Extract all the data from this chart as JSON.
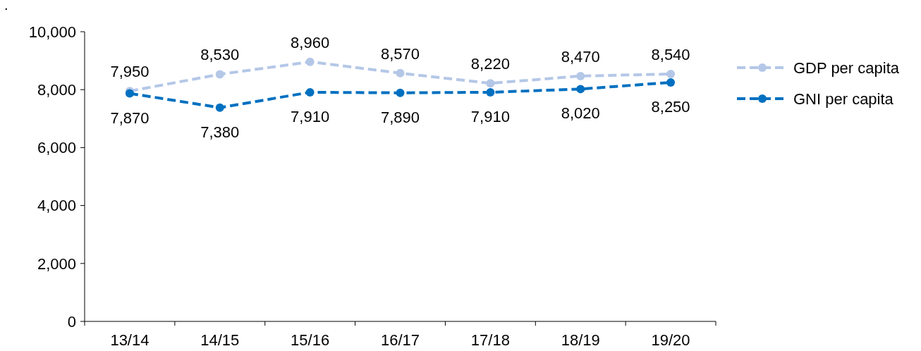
{
  "chart_data": {
    "type": "line",
    "annotations": [
      "."
    ],
    "categories": [
      "13/14",
      "14/15",
      "15/16",
      "16/17",
      "17/18",
      "18/19",
      "19/20"
    ],
    "series": [
      {
        "name": "GDP per capita",
        "color": "#b4c7e7",
        "values": [
          7950,
          8530,
          8960,
          8570,
          8220,
          8470,
          8540
        ],
        "value_labels": [
          "7,950",
          "8,530",
          "8,960",
          "8,570",
          "8,220",
          "8,470",
          "8,540"
        ]
      },
      {
        "name": "GNI per capita",
        "color": "#0070c0",
        "values": [
          7870,
          7380,
          7910,
          7890,
          7910,
          8020,
          8250
        ],
        "value_labels": [
          "7,870",
          "7,380",
          "7,910",
          "7,890",
          "7,910",
          "8,020",
          "8,250"
        ]
      }
    ],
    "ylim": [
      0,
      10000
    ],
    "yticks": [
      {
        "value": 0,
        "label": "0"
      },
      {
        "value": 2000,
        "label": "2,000"
      },
      {
        "value": 4000,
        "label": "4,000"
      },
      {
        "value": 6000,
        "label": "6,000"
      },
      {
        "value": 8000,
        "label": "8,000"
      },
      {
        "value": 10000,
        "label": "10,000"
      }
    ],
    "legend": "right",
    "marker": "circle",
    "line_style": "dashed",
    "grid": false
  }
}
